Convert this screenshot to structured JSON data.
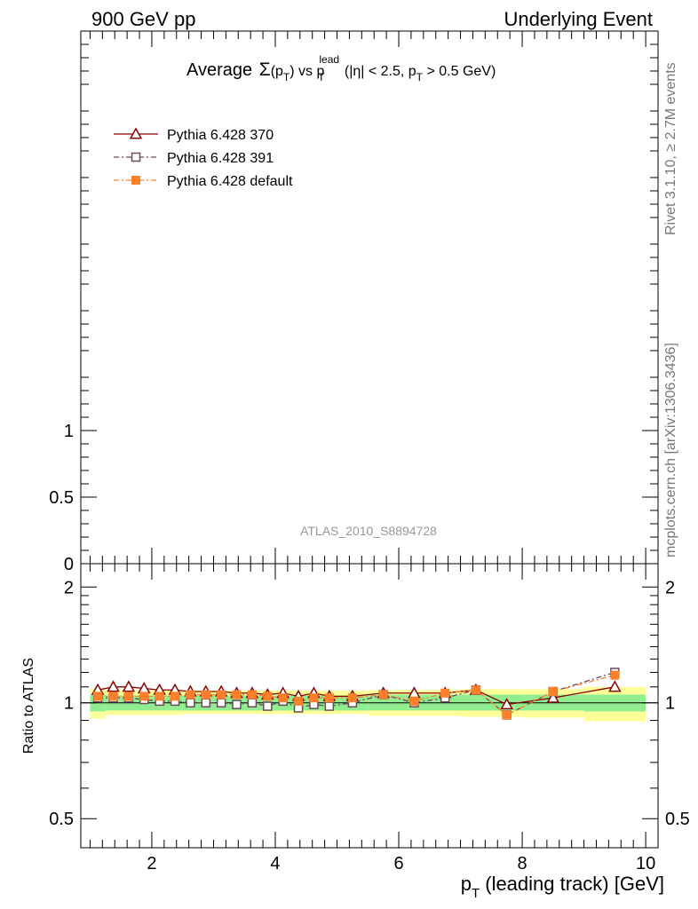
{
  "header": {
    "left": "900 GeV pp",
    "right": "Underlying Event"
  },
  "side_labels": {
    "rivet": "Rivet 3.1.10, ≥ 2.7M events",
    "mcplots": "mcplots.cern.ch [arXiv:1306.3436]"
  },
  "watermark": "ATLAS_2010_S8894728",
  "chart_data": [
    {
      "type": "line",
      "panel": "main",
      "title": "Average Σ(pT) vs pT^lead (|η| < 2.5, pT > 0.5 GeV)",
      "title_parts": {
        "t1": "Average",
        "sigma": "Σ",
        "t2": "(p",
        "sub1": "T",
        "t3": ") vs p",
        "sup_lead": "lead",
        "sub2": "T",
        "t4": " (|η| < 2.5, p",
        "sub3": "T",
        "t5": " > 0.5 GeV)"
      },
      "ylim": [
        0,
        4
      ],
      "y_tick_labels": [
        {
          "value": 1,
          "label": "1"
        },
        {
          "value": 0.5,
          "label": "0.5"
        },
        {
          "value": 0,
          "label": "0"
        }
      ],
      "legend": {
        "placement": "top-left",
        "entries": [
          {
            "label": "Pythia 6.428 370",
            "color": "#8b0000",
            "marker": "triangle-open",
            "dash": "solid"
          },
          {
            "label": "Pythia 6.428 391",
            "color": "#6e4a5a",
            "marker": "square-open",
            "dash": "dashdot"
          },
          {
            "label": "Pythia 6.428 default",
            "color": "#ff7f2a",
            "marker": "square-filled",
            "dash": "dashdot"
          }
        ]
      }
    },
    {
      "type": "line",
      "panel": "ratio",
      "xlabel_parts": {
        "p": "p",
        "sub": "T",
        "rest": " (leading track) [GeV]"
      },
      "ylabel": "Ratio to ATLAS",
      "xlim": [
        0.85,
        10.2
      ],
      "ylim": [
        0.42,
        2.3
      ],
      "y_tick_labels": [
        {
          "value": 2,
          "label": "2"
        },
        {
          "value": 1,
          "label": "1"
        },
        {
          "value": 0.5,
          "label": "0.5"
        }
      ],
      "x_tick_labels": [
        {
          "value": 2,
          "label": "2"
        },
        {
          "value": 4,
          "label": "4"
        },
        {
          "value": 6,
          "label": "6"
        },
        {
          "value": 8,
          "label": "8"
        },
        {
          "value": 10,
          "label": "10"
        }
      ],
      "bands": {
        "inner_color": "#90ee90",
        "outer_color": "#ffff99",
        "bins": [
          {
            "x0": 1.0,
            "x1": 1.25,
            "inner": [
              0.95,
              1.05
            ],
            "outer": [
              0.91,
              1.09
            ]
          },
          {
            "x0": 1.25,
            "x1": 2.5,
            "inner": [
              0.955,
              1.045
            ],
            "outer": [
              0.93,
              1.08
            ]
          },
          {
            "x0": 2.5,
            "x1": 4.0,
            "inner": [
              0.955,
              1.045
            ],
            "outer": [
              0.935,
              1.075
            ]
          },
          {
            "x0": 4.0,
            "x1": 5.5,
            "inner": [
              0.955,
              1.045
            ],
            "outer": [
              0.935,
              1.075
            ]
          },
          {
            "x0": 5.5,
            "x1": 7.0,
            "inner": [
              0.955,
              1.05
            ],
            "outer": [
              0.925,
              1.08
            ]
          },
          {
            "x0": 7.0,
            "x1": 8.0,
            "inner": [
              0.955,
              1.05
            ],
            "outer": [
              0.92,
              1.085
            ]
          },
          {
            "x0": 8.0,
            "x1": 9.0,
            "inner": [
              0.955,
              1.05
            ],
            "outer": [
              0.915,
              1.085
            ]
          },
          {
            "x0": 9.0,
            "x1": 10.0,
            "inner": [
              0.95,
              1.05
            ],
            "outer": [
              0.895,
              1.1
            ]
          }
        ]
      },
      "series": [
        {
          "name": "Pythia 6.428 370",
          "color": "#8b0000",
          "marker": "triangle-open",
          "dash": "solid",
          "x": [
            1.125,
            1.375,
            1.625,
            1.875,
            2.125,
            2.375,
            2.625,
            2.875,
            3.125,
            3.375,
            3.625,
            3.875,
            4.125,
            4.375,
            4.625,
            4.875,
            5.25,
            5.75,
            6.25,
            6.75,
            7.25,
            7.75,
            8.5,
            9.5
          ],
          "y": [
            1.08,
            1.1,
            1.1,
            1.09,
            1.08,
            1.08,
            1.07,
            1.07,
            1.07,
            1.06,
            1.06,
            1.05,
            1.06,
            1.04,
            1.06,
            1.04,
            1.04,
            1.06,
            1.06,
            1.06,
            1.08,
            0.99,
            1.03,
            1.1
          ]
        },
        {
          "name": "Pythia 6.428 391",
          "color": "#6e4a5a",
          "marker": "square-open",
          "dash": "dashdot",
          "x": [
            1.125,
            1.375,
            1.625,
            1.875,
            2.125,
            2.375,
            2.625,
            2.875,
            3.125,
            3.375,
            3.625,
            3.875,
            4.125,
            4.375,
            4.625,
            4.875,
            5.25,
            5.75,
            6.25,
            6.75,
            7.25,
            7.75,
            8.5,
            9.5
          ],
          "y": [
            1.03,
            1.03,
            1.03,
            1.02,
            1.01,
            1.01,
            1.0,
            1.0,
            1.0,
            0.99,
            1.0,
            0.98,
            1.01,
            0.97,
            0.99,
            0.98,
            1.0,
            1.05,
            1.0,
            1.03,
            1.08,
            0.93,
            1.07,
            1.2
          ]
        },
        {
          "name": "Pythia 6.428 default",
          "color": "#ff7f2a",
          "marker": "square-filled",
          "dash": "dashdot",
          "x": [
            1.125,
            1.375,
            1.625,
            1.875,
            2.125,
            2.375,
            2.625,
            2.875,
            3.125,
            3.375,
            3.625,
            3.875,
            4.125,
            4.375,
            4.625,
            4.875,
            5.25,
            5.75,
            6.25,
            6.75,
            7.25,
            7.75,
            8.5,
            9.5
          ],
          "y": [
            1.04,
            1.04,
            1.04,
            1.04,
            1.04,
            1.04,
            1.05,
            1.05,
            1.05,
            1.05,
            1.05,
            1.04,
            1.03,
            1.01,
            1.03,
            1.03,
            1.03,
            1.05,
            1.01,
            1.06,
            1.08,
            0.93,
            1.07,
            1.18
          ]
        }
      ]
    }
  ]
}
